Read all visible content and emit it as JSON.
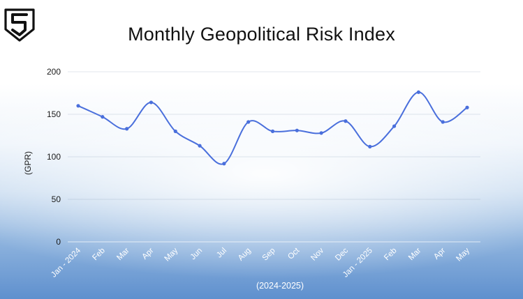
{
  "title": "Monthly Geopolitical Risk Index",
  "logo": {
    "icon": "brand-s-shield-logo"
  },
  "chart_data": {
    "type": "line",
    "title": "Monthly Geopolitical Risk Index",
    "xlabel": "(2024-2025)",
    "ylabel": "(GPR)",
    "categories": [
      "Jan - 2024",
      "Feb",
      "Mar",
      "Apr",
      "May",
      "Jun",
      "Jul",
      "Aug",
      "Sep",
      "Oct",
      "Nov",
      "Dec",
      "Jan - 2025",
      "Feb",
      "Mar",
      "Apr",
      "May"
    ],
    "values": [
      160,
      147,
      133,
      164,
      130,
      113,
      92,
      141,
      130,
      131,
      128,
      142,
      112,
      136,
      176,
      141,
      158
    ],
    "ylim": [
      0,
      200
    ],
    "yticks": [
      0,
      50,
      100,
      150,
      200
    ],
    "grid": true,
    "line_color": "#4a6fdc"
  }
}
